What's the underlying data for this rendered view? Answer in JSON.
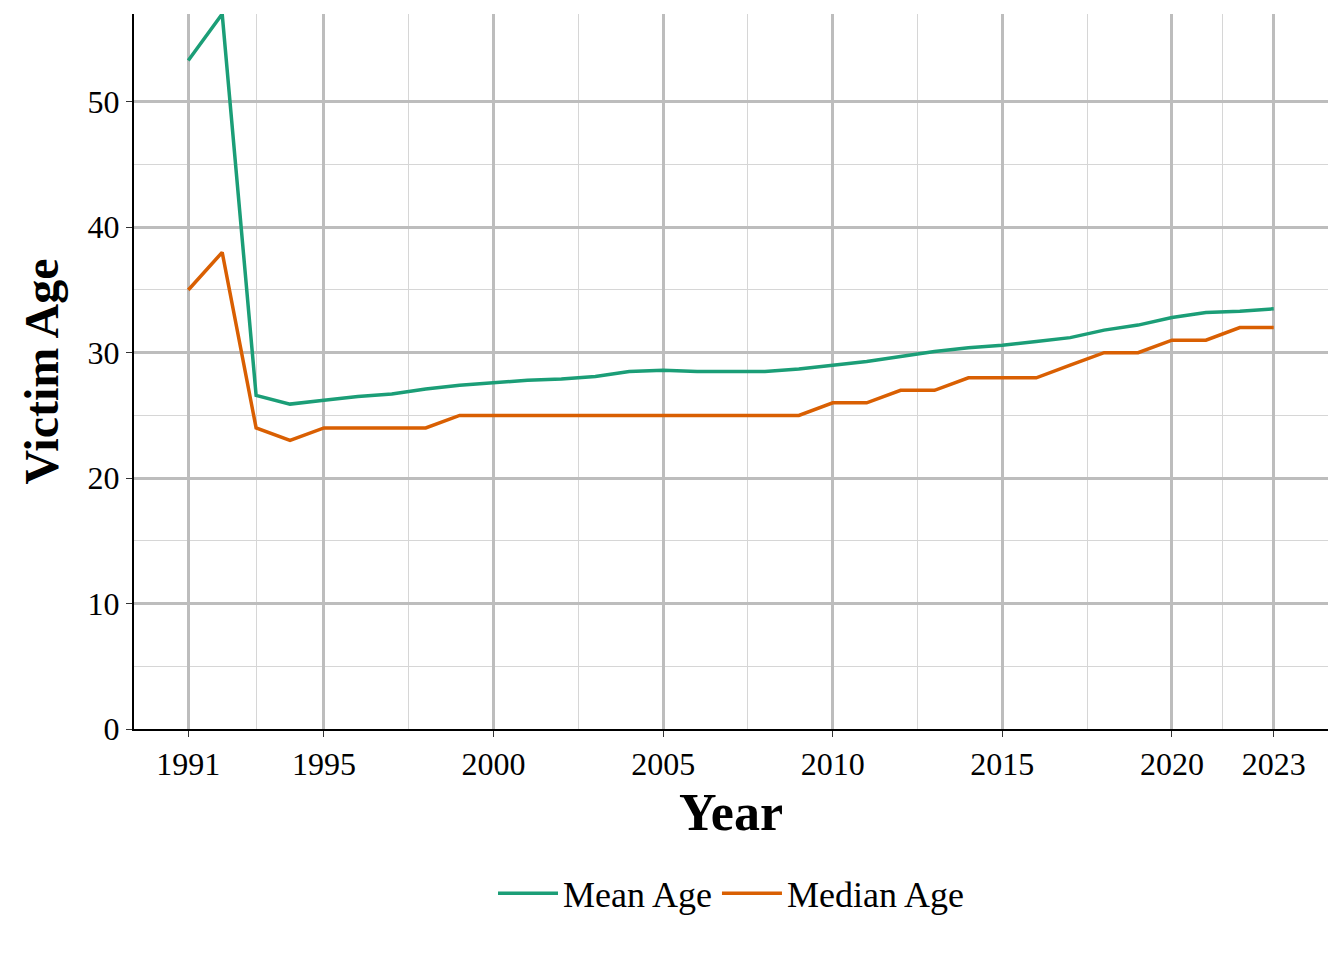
{
  "chart_data": {
    "type": "line",
    "x_label": "Year",
    "y_label": "Victim Age",
    "x": [
      1991,
      1992,
      1993,
      1994,
      1995,
      1996,
      1997,
      1998,
      1999,
      2000,
      2001,
      2002,
      2003,
      2004,
      2005,
      2006,
      2007,
      2008,
      2009,
      2010,
      2011,
      2012,
      2013,
      2014,
      2015,
      2016,
      2017,
      2018,
      2019,
      2020,
      2021,
      2022,
      2023
    ],
    "series": [
      {
        "name": "Mean Age",
        "color": "#1b9e77",
        "values": [
          53.3,
          57,
          26.6,
          25.9,
          26.2,
          26.5,
          26.7,
          27.1,
          27.4,
          27.6,
          27.8,
          27.9,
          28.1,
          28.5,
          28.6,
          28.5,
          28.5,
          28.5,
          28.7,
          29.0,
          29.3,
          29.7,
          30.1,
          30.4,
          30.6,
          30.9,
          31.2,
          31.8,
          32.2,
          32.8,
          33.2,
          33.3,
          33.5
        ]
      },
      {
        "name": "Median Age",
        "color": "#d95f02",
        "values": [
          35,
          38,
          24,
          23,
          24,
          24,
          24,
          24,
          25,
          25,
          25,
          25,
          25,
          25,
          25,
          25,
          25,
          25,
          25,
          26,
          26,
          27,
          27,
          28,
          28,
          28,
          29,
          30,
          30,
          31,
          31,
          32,
          32
        ]
      }
    ],
    "xlim": [
      1989.4,
      2024.6
    ],
    "xticks": [
      1991,
      1995,
      2000,
      2005,
      2010,
      2015,
      2020,
      2023
    ],
    "ylim": [
      0,
      57
    ],
    "yticks": [
      0,
      10,
      20,
      30,
      40,
      50
    ],
    "grid": true,
    "legend": "bottom"
  }
}
